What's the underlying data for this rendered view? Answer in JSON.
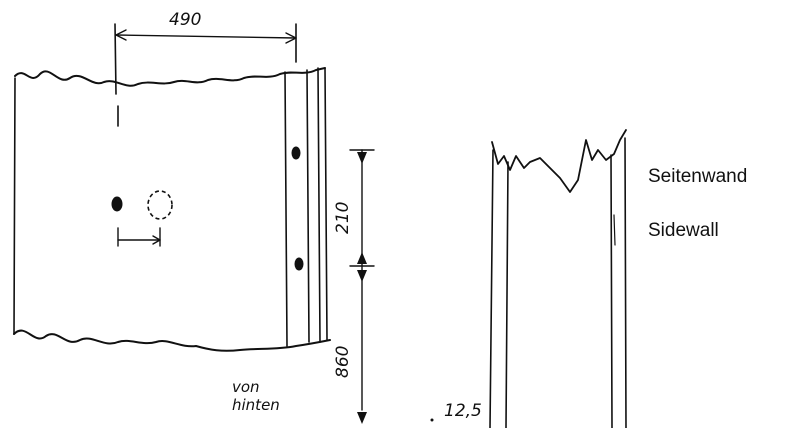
{
  "dimensions": {
    "top_width": "490",
    "hole_spacing": "210",
    "lower_height": "860",
    "side_offset": "12,5"
  },
  "annotations": {
    "view_note_line1": "von",
    "view_note_line2": "hinten"
  },
  "legend": {
    "german": "Seitenwand",
    "english": "Sidewall"
  },
  "colors": {
    "ink": "#111111",
    "paper": "#ffffff"
  }
}
